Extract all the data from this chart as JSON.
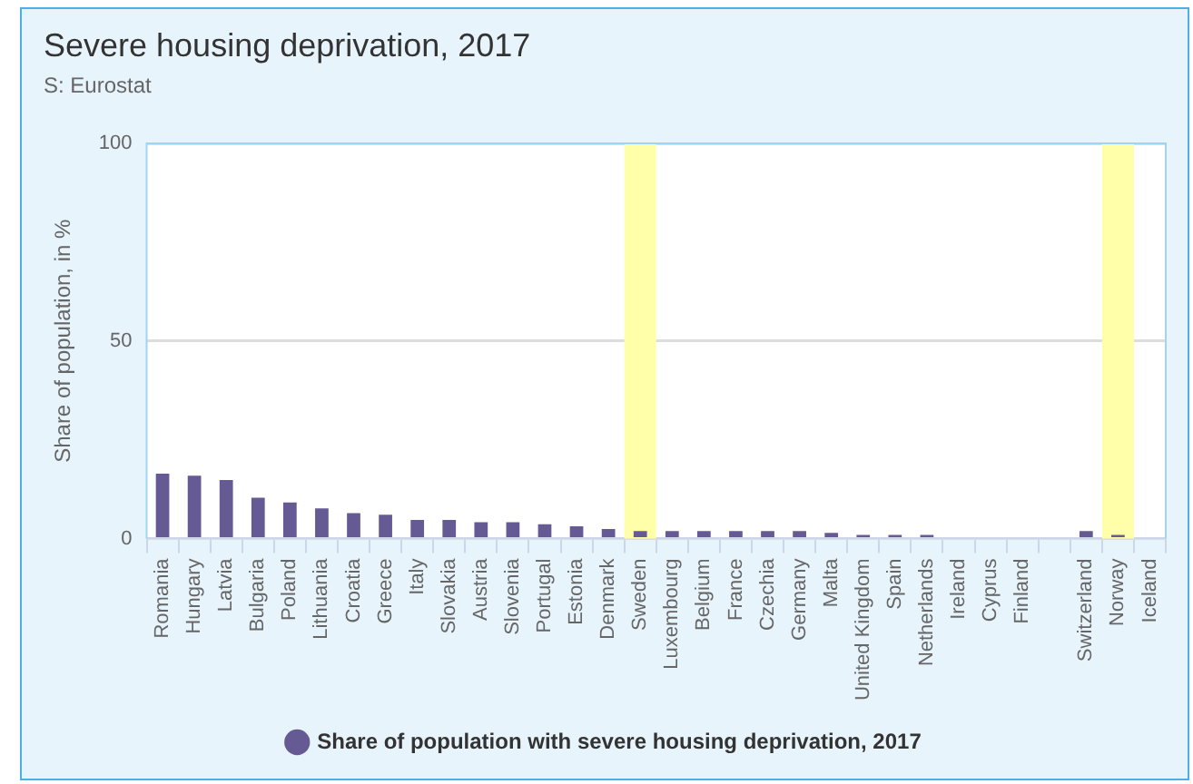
{
  "chart_data": {
    "type": "bar",
    "title": "Severe housing deprivation, 2017",
    "subtitle": "S: Eurostat",
    "ylabel": "Share of population, in %",
    "categories": [
      "Romania",
      "Hungary",
      "Latvia",
      "Bulgaria",
      "Poland",
      "Lithuania",
      "Croatia",
      "Greece",
      "Italy",
      "Slovakia",
      "Austria",
      "Slovenia",
      "Portugal",
      "Estonia",
      "Denmark",
      "Sweden",
      "Luxembourg",
      "Belgium",
      "France",
      "Czechia",
      "Germany",
      "Malta",
      "United Kingdom",
      "Spain",
      "Netherlands",
      "Ireland",
      "Cyprus",
      "Finland",
      null,
      "Switzerland",
      "Norway",
      "Iceland"
    ],
    "series": [
      {
        "name": "Share of population with severe housing deprivation, 2017",
        "color": "#665a94",
        "values": [
          16.4,
          15.9,
          14.8,
          10.3,
          9.1,
          7.6,
          6.4,
          6.0,
          4.7,
          4.7,
          4.1,
          4.1,
          3.6,
          3.1,
          2.4,
          1.9,
          1.9,
          1.9,
          1.9,
          1.9,
          1.9,
          1.4,
          0.9,
          0.9,
          0.9,
          null,
          null,
          null,
          null,
          1.9,
          0.9,
          null
        ]
      }
    ],
    "ylim": [
      0,
      100
    ],
    "yticks": [
      0,
      50,
      100
    ],
    "grid": "y",
    "legend": "bottom",
    "bands": [
      {
        "axis": "x",
        "from": "Sweden",
        "to": "Sweden",
        "color": "#ffffaa"
      },
      {
        "axis": "x",
        "from": "Norway",
        "to": "Norway",
        "color": "#ffffaa"
      }
    ]
  }
}
